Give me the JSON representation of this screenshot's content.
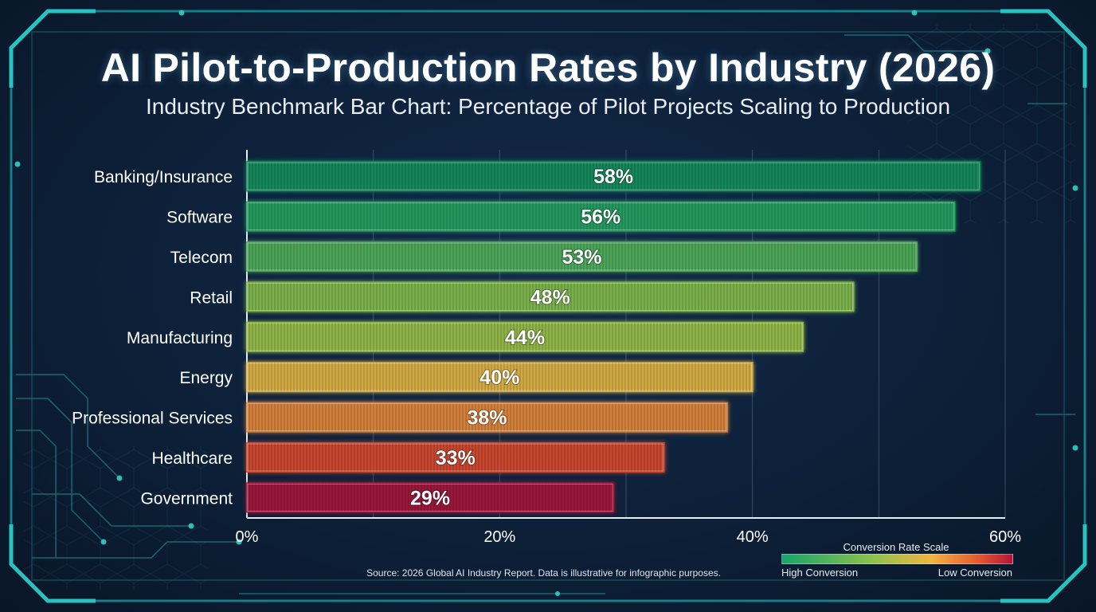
{
  "header": {
    "title": "AI Pilot-to-Production Rates by Industry (2026)",
    "subtitle": "Industry Benchmark Bar Chart: Percentage of Pilot Projects Scaling to Production"
  },
  "footer": {
    "source": "Source: 2026 Global AI Industry Report. Data is illustrative for infographic purposes."
  },
  "legend": {
    "title": "Conversion Rate Scale",
    "left_label": "High Conversion",
    "right_label": "Low Conversion"
  },
  "chart_data": {
    "type": "bar",
    "orientation": "horizontal",
    "title": "AI Pilot-to-Production Rates by Industry (2026)",
    "subtitle": "Industry Benchmark Bar Chart: Percentage of Pilot Projects Scaling to Production",
    "categories": [
      "Banking/Insurance",
      "Software",
      "Telecom",
      "Retail",
      "Manufacturing",
      "Energy",
      "Professional Services",
      "Healthcare",
      "Government"
    ],
    "values": [
      58,
      56,
      53,
      48,
      44,
      40,
      38,
      33,
      29
    ],
    "value_labels": [
      "58%",
      "56%",
      "53%",
      "48%",
      "44%",
      "40%",
      "38%",
      "33%",
      "29%"
    ],
    "bar_colors": [
      "#12925e",
      "#28a564",
      "#52b35c",
      "#86bf4e",
      "#9cc34a",
      "#e7b944",
      "#e98b3a",
      "#dc4b2f",
      "#a8163a"
    ],
    "xlim": [
      0,
      60
    ],
    "xticks": [
      0,
      20,
      40,
      60
    ],
    "xtick_labels": [
      "0%",
      "20%",
      "40%",
      "60%"
    ],
    "grid": true
  },
  "colors": {
    "background": "#0d2038",
    "frame": "#1fb3b0"
  }
}
